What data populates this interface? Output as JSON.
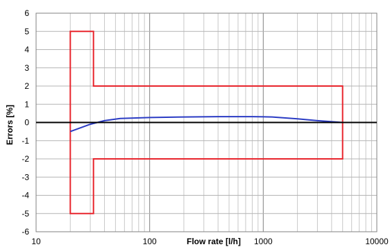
{
  "chart_data": {
    "type": "line",
    "title": "",
    "xlabel": "Flow rate [l/h]",
    "ylabel": "Errors [%]",
    "x_scale": "log",
    "xlim": [
      10,
      10000
    ],
    "ylim": [
      -6,
      6
    ],
    "x_ticks": [
      10,
      100,
      1000,
      10000
    ],
    "x_tick_labels": [
      "10",
      "100",
      "1000",
      "10000"
    ],
    "y_ticks": [
      6,
      5,
      4,
      3,
      2,
      1,
      0,
      -1,
      -2,
      -3,
      -4,
      -5,
      -6
    ],
    "y_tick_labels": [
      "6",
      "5",
      "4",
      "3",
      "2",
      "1",
      "0",
      "-1",
      "-2",
      "-3",
      "-4",
      "-5",
      "-6"
    ],
    "grid": true,
    "legend": "none",
    "series": [
      {
        "color": "#e8242c",
        "x": [
          20,
          20,
          32,
          32,
          5000,
          5000,
          32,
          32,
          20
        ],
        "y": [
          -5,
          5,
          5,
          2,
          2,
          -2,
          -2,
          -5,
          -5
        ],
        "closed": true
      },
      {
        "color": "#2a3bc4",
        "x": [
          20,
          30,
          40,
          55,
          100,
          200,
          400,
          800,
          1200,
          2000,
          3000,
          5000
        ],
        "y": [
          -0.5,
          -0.1,
          0.1,
          0.22,
          0.27,
          0.3,
          0.32,
          0.32,
          0.3,
          0.2,
          0.1,
          0.0
        ]
      }
    ],
    "zero_line_color": "#000000"
  }
}
